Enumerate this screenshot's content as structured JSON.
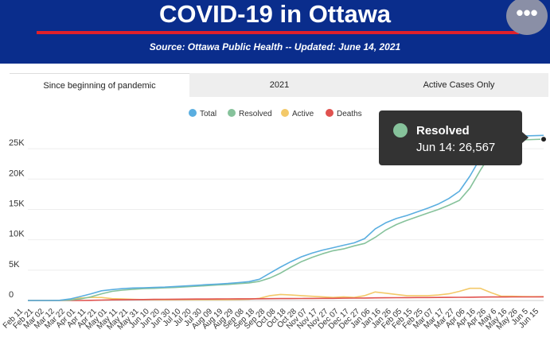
{
  "header": {
    "title": "COVID-19 in Ottawa",
    "subtitle": "Source:  Ottawa Public Health -- Updated:  June 14, 2021",
    "menu_icon": "more-horizontal-icon",
    "bg_color": "#0a2d8c",
    "rule_color": "#e0202a"
  },
  "tabs": [
    {
      "label": "Since beginning of pandemic",
      "active": true
    },
    {
      "label": "2021",
      "active": false
    },
    {
      "label": "Active Cases Only",
      "active": false
    }
  ],
  "tooltip": {
    "series": "Resolved",
    "text": "Jun 14: 26,567"
  },
  "chart_data": {
    "type": "line",
    "legend_position": "top-center",
    "ylim": [
      0,
      27500
    ],
    "y_ticks": [
      {
        "value": 0,
        "label": "0"
      },
      {
        "value": 5000,
        "label": "5K"
      },
      {
        "value": 10000,
        "label": "10K"
      },
      {
        "value": 15000,
        "label": "15K"
      },
      {
        "value": 20000,
        "label": "20K"
      },
      {
        "value": 25000,
        "label": "25K"
      }
    ],
    "x_ticks": [
      "Feb 11",
      "Feb 21",
      "Mar 02",
      "Mar 12",
      "Mar 22",
      "Apr 01",
      "Apr 11",
      "Apr 21",
      "May 01",
      "May 11",
      "May 21",
      "May 31",
      "Jun 10",
      "Jun 20",
      "Jun 30",
      "Jul 10",
      "Jul 20",
      "Jul 30",
      "Aug 09",
      "Aug 19",
      "Aug 29",
      "Sep 08",
      "Sep 18",
      "Sep 28",
      "Oct 08",
      "Oct 18",
      "Oct 28",
      "Nov 07",
      "Nov 17",
      "Nov 27",
      "Dec 07",
      "Dec 17",
      "Dec 27",
      "Jan 06",
      "Jan 16",
      "Jan 26",
      "Feb 05",
      "Feb 15",
      "Feb 25",
      "Mar 07",
      "Mar 17",
      "Mar 27",
      "Apr 06",
      "Apr 16",
      "Apr 26",
      "May 6",
      "May 16",
      "May 26",
      "Jun 5",
      "Jun 15"
    ],
    "series": [
      {
        "name": "Total",
        "color": "#5aaee0",
        "values": [
          0,
          0,
          0,
          30,
          250,
          650,
          1100,
          1600,
          1800,
          1950,
          2050,
          2100,
          2150,
          2200,
          2300,
          2400,
          2500,
          2600,
          2700,
          2800,
          2950,
          3100,
          3500,
          4500,
          5500,
          6400,
          7200,
          7800,
          8300,
          8700,
          9100,
          9500,
          10200,
          11800,
          12800,
          13500,
          14000,
          14600,
          15200,
          15900,
          16800,
          18000,
          20500,
          23500,
          25500,
          26500,
          27000,
          27100,
          27150,
          27200
        ]
      },
      {
        "name": "Resolved",
        "color": "#86c29b",
        "values": [
          0,
          0,
          0,
          0,
          50,
          250,
          600,
          1100,
          1500,
          1700,
          1850,
          1950,
          2000,
          2080,
          2150,
          2250,
          2350,
          2450,
          2550,
          2650,
          2780,
          2900,
          3150,
          3700,
          4500,
          5500,
          6400,
          7100,
          7700,
          8200,
          8500,
          9000,
          9400,
          10400,
          11600,
          12500,
          13200,
          13800,
          14400,
          15000,
          15700,
          16500,
          18500,
          21500,
          24200,
          25800,
          26300,
          26450,
          26520,
          26567
        ]
      },
      {
        "name": "Active",
        "color": "#f3c969",
        "values": [
          0,
          0,
          0,
          30,
          200,
          400,
          500,
          500,
          300,
          250,
          200,
          150,
          150,
          120,
          150,
          150,
          150,
          150,
          150,
          150,
          170,
          200,
          350,
          800,
          1000,
          900,
          800,
          700,
          600,
          500,
          600,
          500,
          800,
          1400,
          1200,
          1000,
          800,
          800,
          800,
          900,
          1100,
          1500,
          2000,
          2000,
          1300,
          700,
          700,
          650,
          630,
          633
        ]
      },
      {
        "name": "Deaths",
        "color": "#e0524f",
        "values": [
          0,
          0,
          0,
          0,
          0,
          5,
          20,
          60,
          100,
          120,
          140,
          160,
          180,
          200,
          210,
          220,
          230,
          240,
          250,
          260,
          270,
          280,
          290,
          300,
          310,
          320,
          330,
          340,
          350,
          360,
          380,
          390,
          410,
          430,
          450,
          460,
          470,
          480,
          490,
          500,
          510,
          520,
          540,
          560,
          570,
          580,
          590,
          590,
          595,
          600
        ]
      }
    ]
  }
}
